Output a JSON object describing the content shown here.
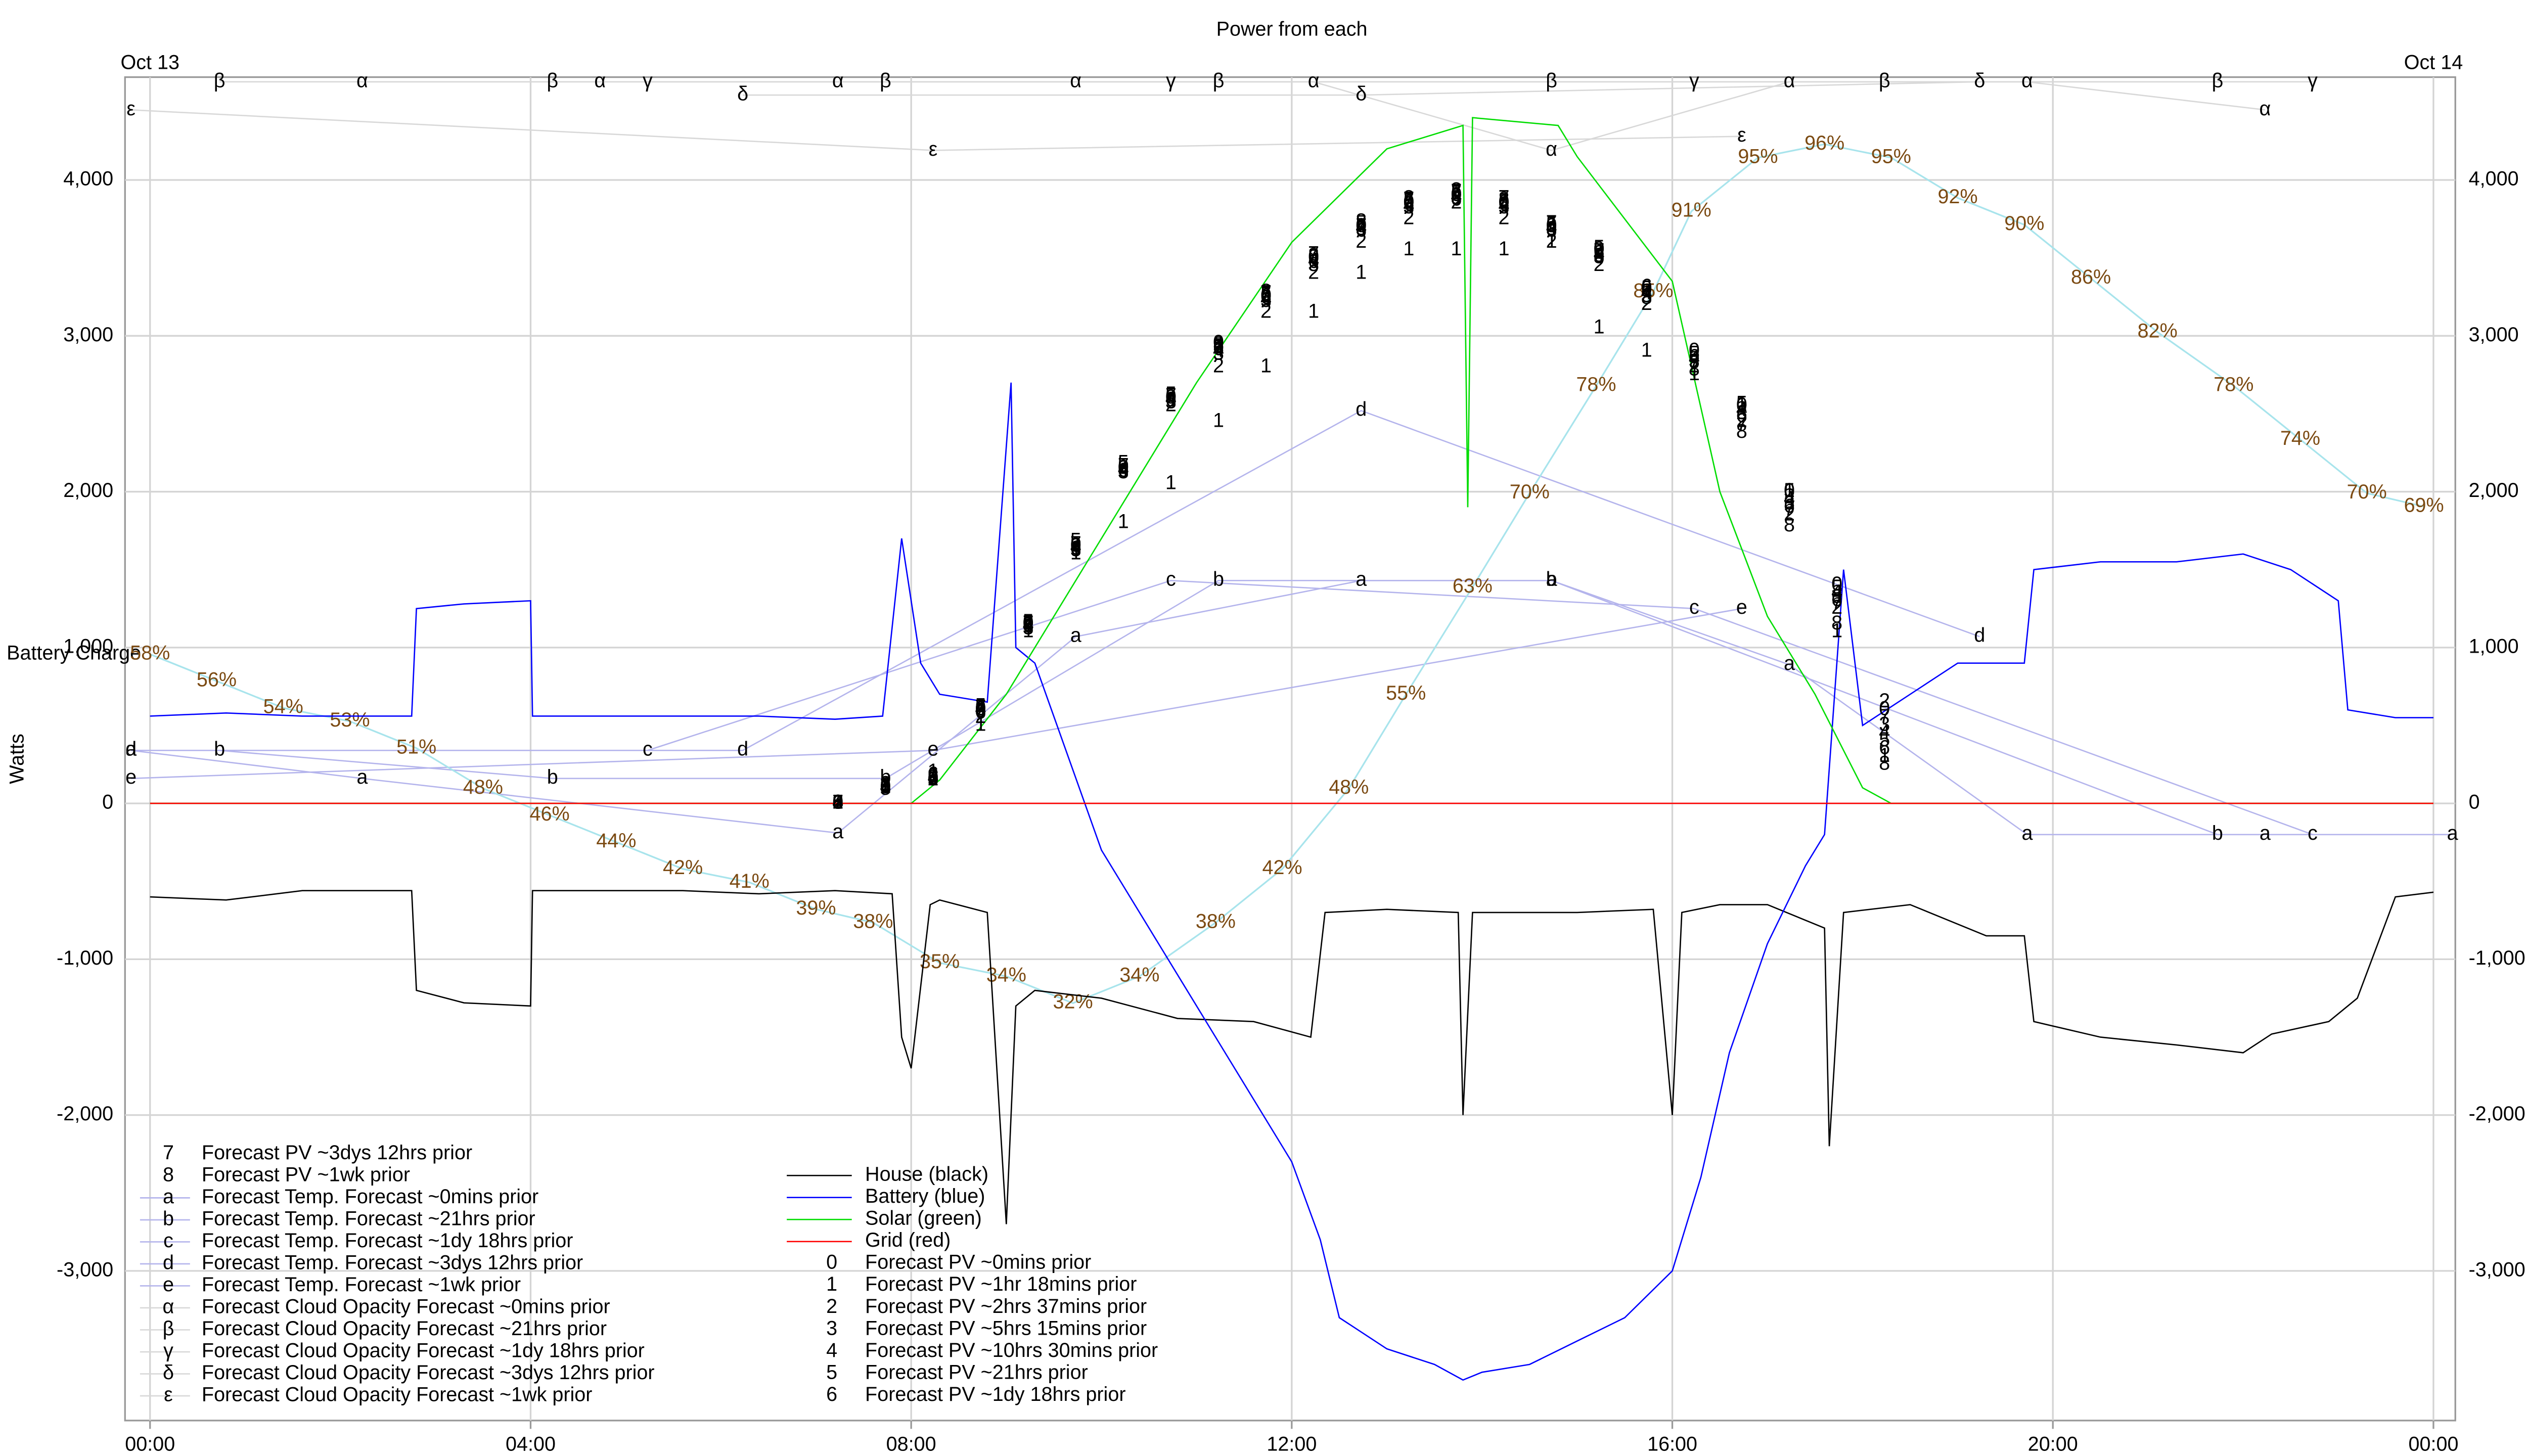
{
  "chart_data": {
    "type": "line",
    "title": "Power from each",
    "y_label": "Watts",
    "xlim": [
      -0.263,
      24.23
    ],
    "ylim": [
      -3960,
      4660
    ],
    "y2lim": [
      0.9,
      101
    ],
    "grid": true,
    "xticks": [
      {
        "value": 0,
        "label": "00:00"
      },
      {
        "value": 4,
        "label": "04:00"
      },
      {
        "value": 8,
        "label": "08:00"
      },
      {
        "value": 12,
        "label": "12:00"
      },
      {
        "value": 16,
        "label": "16:00"
      },
      {
        "value": 20,
        "label": "20:00"
      },
      {
        "value": 24,
        "label": "00:00"
      }
    ],
    "x2ticks": [
      {
        "value": 0,
        "label": "Oct 13"
      },
      {
        "value": 24,
        "label": "Oct 14"
      }
    ],
    "yticks": [
      {
        "value": -3000,
        "label": "-3,000"
      },
      {
        "value": -2000,
        "label": "-2,000"
      },
      {
        "value": -1000,
        "label": "-1,000"
      },
      0,
      {
        "value": 1000,
        "label": "1,000"
      },
      {
        "value": 2000,
        "label": "2,000"
      },
      {
        "value": 3000,
        "label": "3,000"
      },
      {
        "value": 4000,
        "label": "4,000"
      }
    ],
    "battery_charge": {
      "name": "Battery Charge",
      "axis": "y2",
      "color": "#a8e4ec",
      "label_color": "#7b4a12",
      "x": [
        0,
        0.7,
        1.4,
        2.1,
        2.8,
        3.5,
        4.2,
        4.9,
        5.6,
        6.3,
        7,
        7.6,
        8.3,
        9,
        9.7,
        10.4,
        11.2,
        11.9,
        12.6,
        13.2,
        13.9,
        14.5,
        15.2,
        15.8,
        16.2,
        16.9,
        17.6,
        18.3,
        19,
        19.7,
        20.4,
        21.1,
        21.9,
        22.6,
        23.3,
        23.9
      ],
      "values": [
        58,
        56,
        54,
        53,
        51,
        48,
        46,
        44,
        42,
        41,
        39,
        38,
        35,
        34,
        32,
        34,
        38,
        42,
        48,
        55,
        63,
        70,
        78,
        85,
        91,
        95,
        96,
        95,
        92,
        90,
        86,
        82,
        78,
        74,
        70,
        69
      ],
      "value_labels": [
        "58%",
        "56%",
        "54%",
        "53%",
        "51%",
        "48%",
        "46%",
        "44%",
        "42%",
        "41%",
        "39%",
        "38%",
        "35%",
        "34%",
        "32%",
        "34%",
        "38%",
        "42%",
        "48%",
        "55%",
        "63%",
        "70%",
        "78%",
        "85%",
        "91%",
        "95%",
        "96%",
        "95%",
        "92%",
        "90%",
        "86%",
        "82%",
        "78%",
        "74%",
        "70%",
        "69%"
      ]
    },
    "series": [
      {
        "name": "House (black)",
        "color": "#000000",
        "x": [
          0,
          0.8,
          1.6,
          2.4,
          2.75,
          2.8,
          3.3,
          4,
          4.02,
          4.8,
          5.6,
          6.4,
          7.2,
          7.8,
          7.9,
          8,
          8.2,
          8.3,
          8.8,
          9,
          9.1,
          9.3,
          10,
          10.8,
          11.6,
          12.2,
          12.35,
          13,
          13.75,
          13.8,
          13.9,
          14.2,
          15,
          15.8,
          16,
          16.1,
          16.5,
          17,
          17.6,
          17.65,
          17.8,
          18.5,
          19.3,
          19.7,
          19.8,
          20.5,
          21.3,
          22,
          22.3,
          22.9,
          23.2,
          23.6,
          24
        ],
        "values": [
          -600,
          -620,
          -560,
          -560,
          -560,
          -1200,
          -1280,
          -1300,
          -560,
          -560,
          -560,
          -580,
          -560,
          -580,
          -1500,
          -1700,
          -650,
          -620,
          -700,
          -2700,
          -1300,
          -1200,
          -1250,
          -1380,
          -1400,
          -1500,
          -700,
          -680,
          -700,
          -2000,
          -700,
          -700,
          -700,
          -680,
          -2000,
          -700,
          -650,
          -650,
          -800,
          -2200,
          -700,
          -650,
          -850,
          -850,
          -1400,
          -1500,
          -1550,
          -1600,
          -1480,
          -1400,
          -1250,
          -600,
          -570
        ]
      },
      {
        "name": "Battery (blue)",
        "color": "#0000ff",
        "x": [
          0,
          0.8,
          1.6,
          2.4,
          2.75,
          2.8,
          3.3,
          4,
          4.02,
          4.8,
          5.6,
          6.4,
          7.2,
          7.7,
          7.9,
          8.1,
          8.3,
          8.8,
          9.05,
          9.1,
          9.3,
          10,
          10.5,
          11,
          11.5,
          12,
          12.3,
          12.5,
          13,
          13.5,
          13.8,
          14,
          14.5,
          15,
          15.5,
          16,
          16.3,
          16.6,
          17,
          17.4,
          17.6,
          17.8,
          18,
          18.5,
          19,
          19.7,
          19.8,
          20.5,
          21.3,
          22,
          22.5,
          23,
          23.1,
          23.6,
          24
        ],
        "values": [
          560,
          580,
          560,
          560,
          560,
          1250,
          1280,
          1300,
          560,
          560,
          560,
          560,
          540,
          560,
          1700,
          900,
          700,
          650,
          2700,
          1000,
          900,
          -300,
          -800,
          -1300,
          -1800,
          -2300,
          -2800,
          -3300,
          -3500,
          -3600,
          -3700,
          -3650,
          -3600,
          -3450,
          -3300,
          -3000,
          -2400,
          -1600,
          -900,
          -400,
          -200,
          1500,
          500,
          700,
          900,
          900,
          1500,
          1550,
          1550,
          1600,
          1500,
          1300,
          600,
          550,
          550
        ]
      },
      {
        "name": "Solar (green)",
        "color": "#00dd00",
        "x": [
          0,
          8,
          8.3,
          9,
          10,
          11,
          12,
          13,
          13.8,
          13.85,
          13.9,
          14.8,
          15,
          16,
          16.5,
          17,
          17.5,
          18,
          18.3,
          24
        ],
        "values": [
          0,
          0,
          150,
          700,
          1700,
          2700,
          3600,
          4200,
          4350,
          1900,
          4400,
          4350,
          4150,
          3350,
          2000,
          1200,
          700,
          100,
          0,
          0
        ]
      },
      {
        "name": "Grid (red)",
        "color": "#ff0000",
        "x": [
          0,
          24
        ],
        "values": [
          0,
          0
        ]
      },
      {
        "name": "Forecast PV ~0mins prior",
        "marker": "0",
        "color": "#000000",
        "x": [
          7.23,
          7.73,
          8.23,
          8.73,
          9.23,
          9.73,
          10.23,
          10.73,
          11.23,
          11.73,
          12.23,
          12.73,
          13.23,
          13.73,
          14.23,
          14.73,
          15.23,
          15.73,
          16.23,
          16.73,
          17.23,
          17.73,
          18.23
        ],
        "values": [
          0,
          100,
          150,
          600,
          1150,
          1650,
          2150,
          2600,
          2950,
          3250,
          3500,
          3700,
          3850,
          3900,
          3850,
          3700,
          3550,
          3300,
          2900,
          2550,
          2000,
          1400,
          600
        ]
      },
      {
        "name": "Forecast PV ~1hr 18mins prior",
        "marker": "1",
        "color": "#000000",
        "x": [
          7.23,
          7.73,
          8.23,
          8.73,
          9.23,
          9.73,
          10.23,
          10.73,
          11.23,
          11.73,
          12.23,
          12.73,
          13.23,
          13.73,
          14.23,
          14.73,
          15.23,
          15.73,
          16.23,
          16.73,
          17.23,
          17.73,
          18.23
        ],
        "values": [
          0,
          100,
          200,
          500,
          1100,
          1600,
          1800,
          2050,
          2450,
          2800,
          3150,
          3400,
          3550,
          3550,
          3550,
          3600,
          3050,
          2900,
          2750,
          2550,
          2000,
          1100,
          300
        ]
      },
      {
        "name": "Forecast PV ~2hrs 37mins prior",
        "marker": "2",
        "color": "#000000",
        "x": [
          7.23,
          7.73,
          8.23,
          8.73,
          9.23,
          9.73,
          10.23,
          10.73,
          11.23,
          11.73,
          12.23,
          12.73,
          13.23,
          13.73,
          14.23,
          14.73,
          15.23,
          15.73,
          16.23,
          16.73,
          17.23,
          17.73,
          18.23
        ],
        "values": [
          0,
          120,
          150,
          550,
          1150,
          1650,
          2150,
          2550,
          2800,
          3150,
          3400,
          3600,
          3750,
          3850,
          3750,
          3600,
          3450,
          3200,
          2800,
          2450,
          1850,
          1250,
          650
        ]
      },
      {
        "name": "Forecast PV ~5hrs 15mins prior",
        "marker": "3",
        "color": "#000000",
        "x": [
          7.23,
          7.73,
          8.23,
          8.73,
          9.23,
          9.73,
          10.23,
          10.73,
          11.23,
          11.73,
          12.23,
          12.73,
          13.23,
          13.73,
          14.23,
          14.73,
          15.23,
          15.73,
          16.23,
          16.73,
          17.23,
          17.73,
          18.23
        ],
        "values": [
          0,
          100,
          170,
          600,
          1120,
          1620,
          2120,
          2570,
          2880,
          3220,
          3450,
          3680,
          3820,
          3880,
          3820,
          3680,
          3500,
          3250,
          2830,
          2500,
          1920,
          1320,
          500
        ]
      },
      {
        "name": "Forecast PV ~10hrs 30mins prior",
        "marker": "4",
        "color": "#000000",
        "x": [
          7.23,
          7.73,
          8.23,
          8.73,
          9.23,
          9.73,
          10.23,
          10.73,
          11.23,
          11.73,
          12.23,
          12.73,
          13.23,
          13.73,
          14.23,
          14.73,
          15.23,
          15.73,
          16.23,
          16.73,
          17.23,
          17.73,
          18.23
        ],
        "values": [
          0,
          100,
          160,
          600,
          1140,
          1640,
          2140,
          2590,
          2900,
          3230,
          3480,
          3690,
          3830,
          3890,
          3830,
          3690,
          3520,
          3270,
          2850,
          2520,
          1950,
          1350,
          450
        ]
      },
      {
        "name": "Forecast PV ~21hrs prior",
        "marker": "5",
        "color": "#000000",
        "x": [
          7.23,
          7.73,
          8.23,
          8.73,
          9.23,
          9.73,
          10.23,
          10.73,
          11.23,
          11.73,
          12.23,
          12.73,
          13.23,
          13.73,
          14.23,
          14.73,
          15.23,
          15.73,
          16.23,
          16.73,
          17.23,
          17.73,
          18.23
        ],
        "values": [
          0,
          90,
          150,
          620,
          1160,
          1680,
          2180,
          2620,
          2930,
          3260,
          3500,
          3720,
          3860,
          3910,
          3860,
          3710,
          3560,
          3300,
          2880,
          2560,
          2000,
          1380,
          400
        ]
      },
      {
        "name": "Forecast PV ~1dy 18hrs prior",
        "marker": "6",
        "color": "#000000",
        "x": [
          7.23,
          7.73,
          8.23,
          8.73,
          9.23,
          9.73,
          10.23,
          10.73,
          11.23,
          11.73,
          12.23,
          12.73,
          13.23,
          13.73,
          14.23,
          14.73,
          15.23,
          15.73,
          16.23,
          16.73,
          17.23,
          17.73,
          18.23
        ],
        "values": [
          0,
          110,
          180,
          580,
          1130,
          1630,
          2130,
          2580,
          2910,
          3240,
          3470,
          3670,
          3840,
          3870,
          3840,
          3670,
          3530,
          3310,
          2860,
          2480,
          1900,
          1300,
          350
        ]
      },
      {
        "name": "Forecast PV ~3dys 12hrs prior",
        "marker": "7",
        "color": "#000000",
        "x": [
          7.23,
          7.73,
          8.23,
          8.73,
          9.23,
          9.73,
          10.23,
          10.73,
          11.23,
          11.73,
          12.23,
          12.73,
          13.23,
          13.73,
          14.23,
          14.73,
          15.23,
          15.73,
          16.23,
          16.73,
          17.23,
          17.73,
          18.23
        ],
        "values": [
          0,
          100,
          150,
          610,
          1150,
          1660,
          2160,
          2610,
          2920,
          3270,
          3520,
          3700,
          3870,
          3920,
          3880,
          3720,
          3540,
          3280,
          2820,
          2420,
          1880,
          1280,
          550
        ]
      },
      {
        "name": "Forecast PV ~1wk prior",
        "marker": "8",
        "color": "#000000",
        "x": [
          7.23,
          7.73,
          8.23,
          8.73,
          9.23,
          9.73,
          10.23,
          10.73,
          11.23,
          11.73,
          12.23,
          12.73,
          13.23,
          13.73,
          14.23,
          14.73,
          15.23,
          15.73,
          16.23,
          16.73,
          17.23,
          17.73,
          18.23
        ],
        "values": [
          0,
          100,
          160,
          590,
          1140,
          1650,
          2150,
          2600,
          2940,
          3280,
          3510,
          3730,
          3880,
          3930,
          3870,
          3700,
          3510,
          3240,
          2780,
          2380,
          1780,
          1150,
          250
        ]
      },
      {
        "name": "Forecast Temp. Forecast ~0mins prior",
        "marker": "a",
        "color": "#000000",
        "line_color": "#b4b4ec",
        "x": [
          -0.2,
          2.23,
          7.23,
          9.73,
          12.73,
          14.73,
          17.23,
          19.73,
          22.23,
          24.2
        ],
        "values": [
          340,
          160,
          -190,
          1070,
          1430,
          1430,
          890,
          -200,
          -200,
          -200
        ]
      },
      {
        "name": "Forecast Temp. Forecast ~21hrs prior",
        "marker": "b",
        "color": "#000000",
        "line_color": "#b4b4ec",
        "x": [
          0.73,
          4.23,
          7.73,
          11.23,
          14.73,
          21.73
        ],
        "values": [
          340,
          160,
          160,
          1430,
          1430,
          -200
        ]
      },
      {
        "name": "Forecast Temp. Forecast ~1dy 18hrs prior",
        "marker": "c",
        "color": "#000000",
        "line_color": "#b4b4ec",
        "x": [
          5.23,
          10.73,
          16.23,
          22.73
        ],
        "values": [
          340,
          1430,
          1250,
          -200
        ]
      },
      {
        "name": "Forecast Temp. Forecast ~3dys 12hrs prior",
        "marker": "d",
        "color": "#000000",
        "line_color": "#b4b4ec",
        "x": [
          -0.2,
          6.23,
          12.73,
          19.23
        ],
        "values": [
          340,
          340,
          2520,
          1070
        ]
      },
      {
        "name": "Forecast Temp. Forecast ~1wk prior",
        "marker": "e",
        "color": "#000000",
        "line_color": "#b4b4ec",
        "x": [
          -0.2,
          8.23,
          16.73
        ],
        "values": [
          160,
          340,
          1250
        ]
      },
      {
        "name": "Forecast Cloud Opacity Forecast ~0mins prior",
        "marker": "α",
        "color": "#000000",
        "line_color": "#d8d8d8",
        "x": [
          2.23,
          4.73,
          7.23,
          9.73,
          12.23,
          14.73,
          17.23,
          19.73,
          22.23
        ],
        "values": [
          4630,
          4630,
          4630,
          4630,
          4630,
          4190,
          4630,
          4630,
          4450
        ]
      },
      {
        "name": "Forecast Cloud Opacity Forecast ~21hrs prior",
        "marker": "β",
        "color": "#000000",
        "line_color": "#d8d8d8",
        "x": [
          0.73,
          4.23,
          7.73,
          11.23,
          14.73,
          18.23,
          21.73
        ],
        "values": [
          4630,
          4630,
          4630,
          4630,
          4630,
          4630,
          4630
        ]
      },
      {
        "name": "Forecast Cloud Opacity Forecast ~1dy 18hrs prior",
        "marker": "γ",
        "color": "#000000",
        "line_color": "#d8d8d8",
        "x": [
          5.23,
          10.73,
          16.23,
          22.73
        ],
        "values": [
          4630,
          4630,
          4630,
          4630
        ]
      },
      {
        "name": "Forecast Cloud Opacity Forecast ~3dys 12hrs prior",
        "marker": "δ",
        "color": "#000000",
        "line_color": "#d8d8d8",
        "x": [
          6.23,
          12.73,
          19.23
        ],
        "values": [
          4545,
          4545,
          4630
        ]
      },
      {
        "name": "Forecast Cloud Opacity Forecast ~1wk prior",
        "marker": "ε",
        "color": "#000000",
        "line_color": "#d8d8d8",
        "x": [
          -0.2,
          8.23,
          16.73
        ],
        "values": [
          4450,
          4190,
          4280
        ]
      }
    ]
  }
}
